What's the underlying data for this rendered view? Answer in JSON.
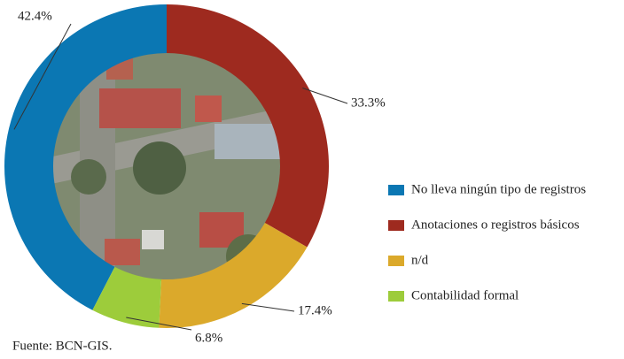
{
  "chart_data": {
    "type": "donut",
    "categories": [
      "No lleva ningún tipo de registros",
      "Anotaciones o registros básicos",
      "n/d",
      "Contabilidad formal"
    ],
    "values": [
      42.4,
      33.3,
      17.4,
      6.8
    ],
    "value_labels": [
      "42.4%",
      "33.3%",
      "17.4%",
      "6.8%"
    ],
    "colors": [
      "#0b77b3",
      "#9e2a1f",
      "#dba92b",
      "#9dcc3b"
    ],
    "source": "Fuente: BCN-GIS."
  }
}
